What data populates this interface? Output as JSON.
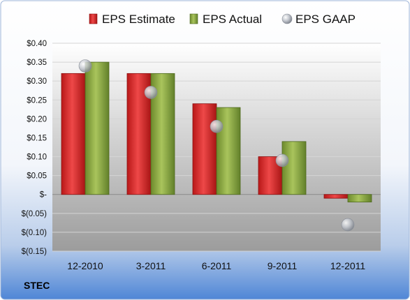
{
  "ticker": "STEC",
  "chart_data": {
    "type": "bar",
    "categories": [
      "12-2010",
      "3-2011",
      "6-2011",
      "9-2011",
      "12-2011"
    ],
    "series": [
      {
        "name": "EPS Estimate",
        "kind": "bar",
        "color": "#d42a2a",
        "values": [
          0.32,
          0.32,
          0.24,
          0.1,
          -0.01
        ]
      },
      {
        "name": "EPS Actual",
        "kind": "bar",
        "color": "#8aa640",
        "values": [
          0.35,
          0.32,
          0.23,
          0.14,
          -0.02
        ]
      },
      {
        "name": "EPS GAAP",
        "kind": "marker",
        "color": "#b8bcc4",
        "values": [
          0.34,
          0.27,
          0.18,
          0.09,
          -0.08
        ]
      }
    ],
    "yticks": [
      {
        "value": 0.4,
        "label": "$0.40"
      },
      {
        "value": 0.35,
        "label": "$0.35"
      },
      {
        "value": 0.3,
        "label": "$0.30"
      },
      {
        "value": 0.25,
        "label": "$0.25"
      },
      {
        "value": 0.2,
        "label": "$0.20"
      },
      {
        "value": 0.15,
        "label": "$0.15"
      },
      {
        "value": 0.1,
        "label": "$0.10"
      },
      {
        "value": 0.05,
        "label": "$0.05"
      },
      {
        "value": 0.0,
        "label": "$-"
      },
      {
        "value": -0.05,
        "label": "$(0.05)"
      },
      {
        "value": -0.1,
        "label": "$(0.10)"
      },
      {
        "value": -0.15,
        "label": "$(0.15)"
      }
    ],
    "ylim": [
      -0.15,
      0.4
    ],
    "grid": true,
    "legend": "top"
  }
}
